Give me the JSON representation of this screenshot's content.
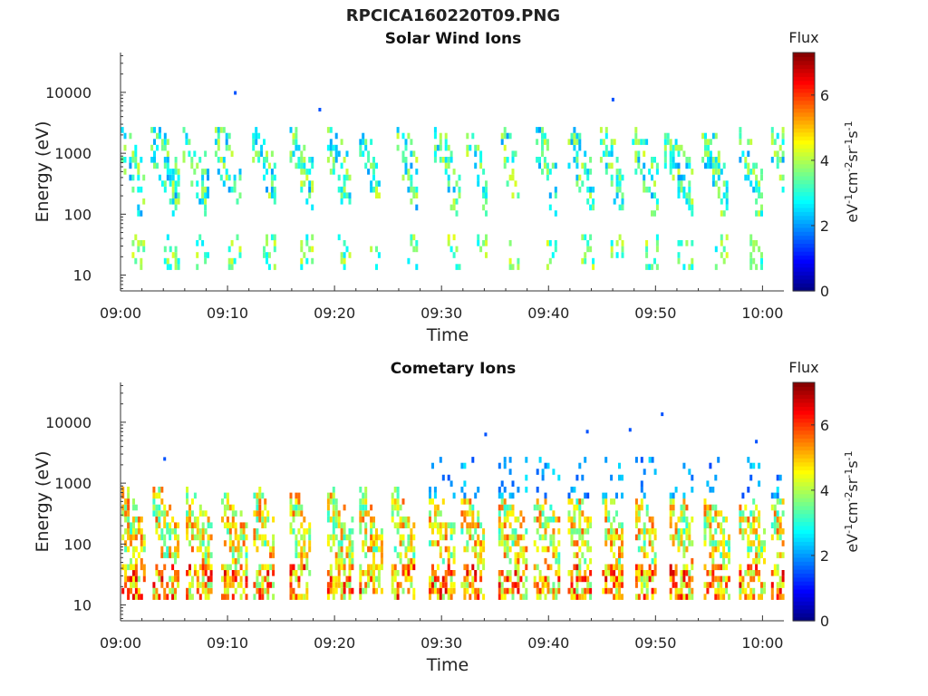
{
  "figure": {
    "title": "RPCICA160220T09.PNG"
  },
  "chart_data": [
    {
      "type": "heatmap",
      "title": "Solar Wind Ions",
      "xlabel": "Time",
      "ylabel": "Energy (eV)",
      "x_ticks": [
        "09:00",
        "09:10",
        "09:20",
        "09:30",
        "09:40",
        "09:50",
        "10:00"
      ],
      "xlim_minutes": [
        0,
        62
      ],
      "y_ticks": [
        10,
        100,
        1000,
        10000
      ],
      "y_tick_labels": [
        "10",
        "100",
        "1000",
        "10000"
      ],
      "ylim": [
        5.5,
        45000
      ],
      "y_scale": "log",
      "colorbar": {
        "label": "Flux",
        "units": "eV-1cm-2sr-1s-1",
        "ticks": [
          0,
          2,
          4,
          6
        ],
        "range": [
          0,
          7.3
        ],
        "colormap": "jet"
      },
      "bursts_minutes": [
        0,
        3,
        6,
        9,
        12.5,
        16,
        19.5,
        22.5,
        26,
        29.5,
        32.5,
        35.5,
        39,
        42,
        45,
        48,
        51,
        54.5,
        58,
        61
      ],
      "features": {
        "main_band_eV": [
          100,
          2500
        ],
        "low_band_eV": [
          12,
          45
        ],
        "typical_flux": [
          2,
          4.5
        ],
        "isolated_high_points": [
          {
            "t": 10.6,
            "e": 9800
          },
          {
            "t": 18.5,
            "e": 5200
          },
          {
            "t": 45.9,
            "e": 7600
          }
        ]
      }
    },
    {
      "type": "heatmap",
      "title": "Cometary Ions",
      "xlabel": "Time",
      "ylabel": "Energy (eV)",
      "x_ticks": [
        "09:00",
        "09:10",
        "09:20",
        "09:30",
        "09:40",
        "09:50",
        "10:00"
      ],
      "xlim_minutes": [
        0,
        62
      ],
      "y_ticks": [
        10,
        100,
        1000,
        10000
      ],
      "y_tick_labels": [
        "10",
        "100",
        "1000",
        "10000"
      ],
      "ylim": [
        5.5,
        45000
      ],
      "y_scale": "log",
      "colorbar": {
        "label": "Flux",
        "units": "eV-1cm-2sr-1s-1",
        "ticks": [
          0,
          2,
          4,
          6
        ],
        "range": [
          0,
          7.3
        ],
        "colormap": "jet"
      },
      "bursts_minutes": [
        0.3,
        3.2,
        6.3,
        9.6,
        12.6,
        16,
        19.5,
        22.5,
        25.5,
        29,
        32,
        35.5,
        38.8,
        42,
        45.2,
        48.3,
        51.5,
        54.7,
        58,
        61
      ],
      "features": {
        "main_band_eV": [
          40,
          800
        ],
        "low_band_eV": [
          12,
          45
        ],
        "sparse_high_energy_eV": [
          500,
          8000
        ],
        "typical_flux": [
          3,
          6.5
        ],
        "isolated_high_points": [
          {
            "t": 4,
            "e": 2500
          },
          {
            "t": 34,
            "e": 6300
          },
          {
            "t": 43.5,
            "e": 7000
          },
          {
            "t": 47.5,
            "e": 7500
          },
          {
            "t": 50.5,
            "e": 13500
          },
          {
            "t": 59.3,
            "e": 4800
          }
        ]
      }
    }
  ]
}
